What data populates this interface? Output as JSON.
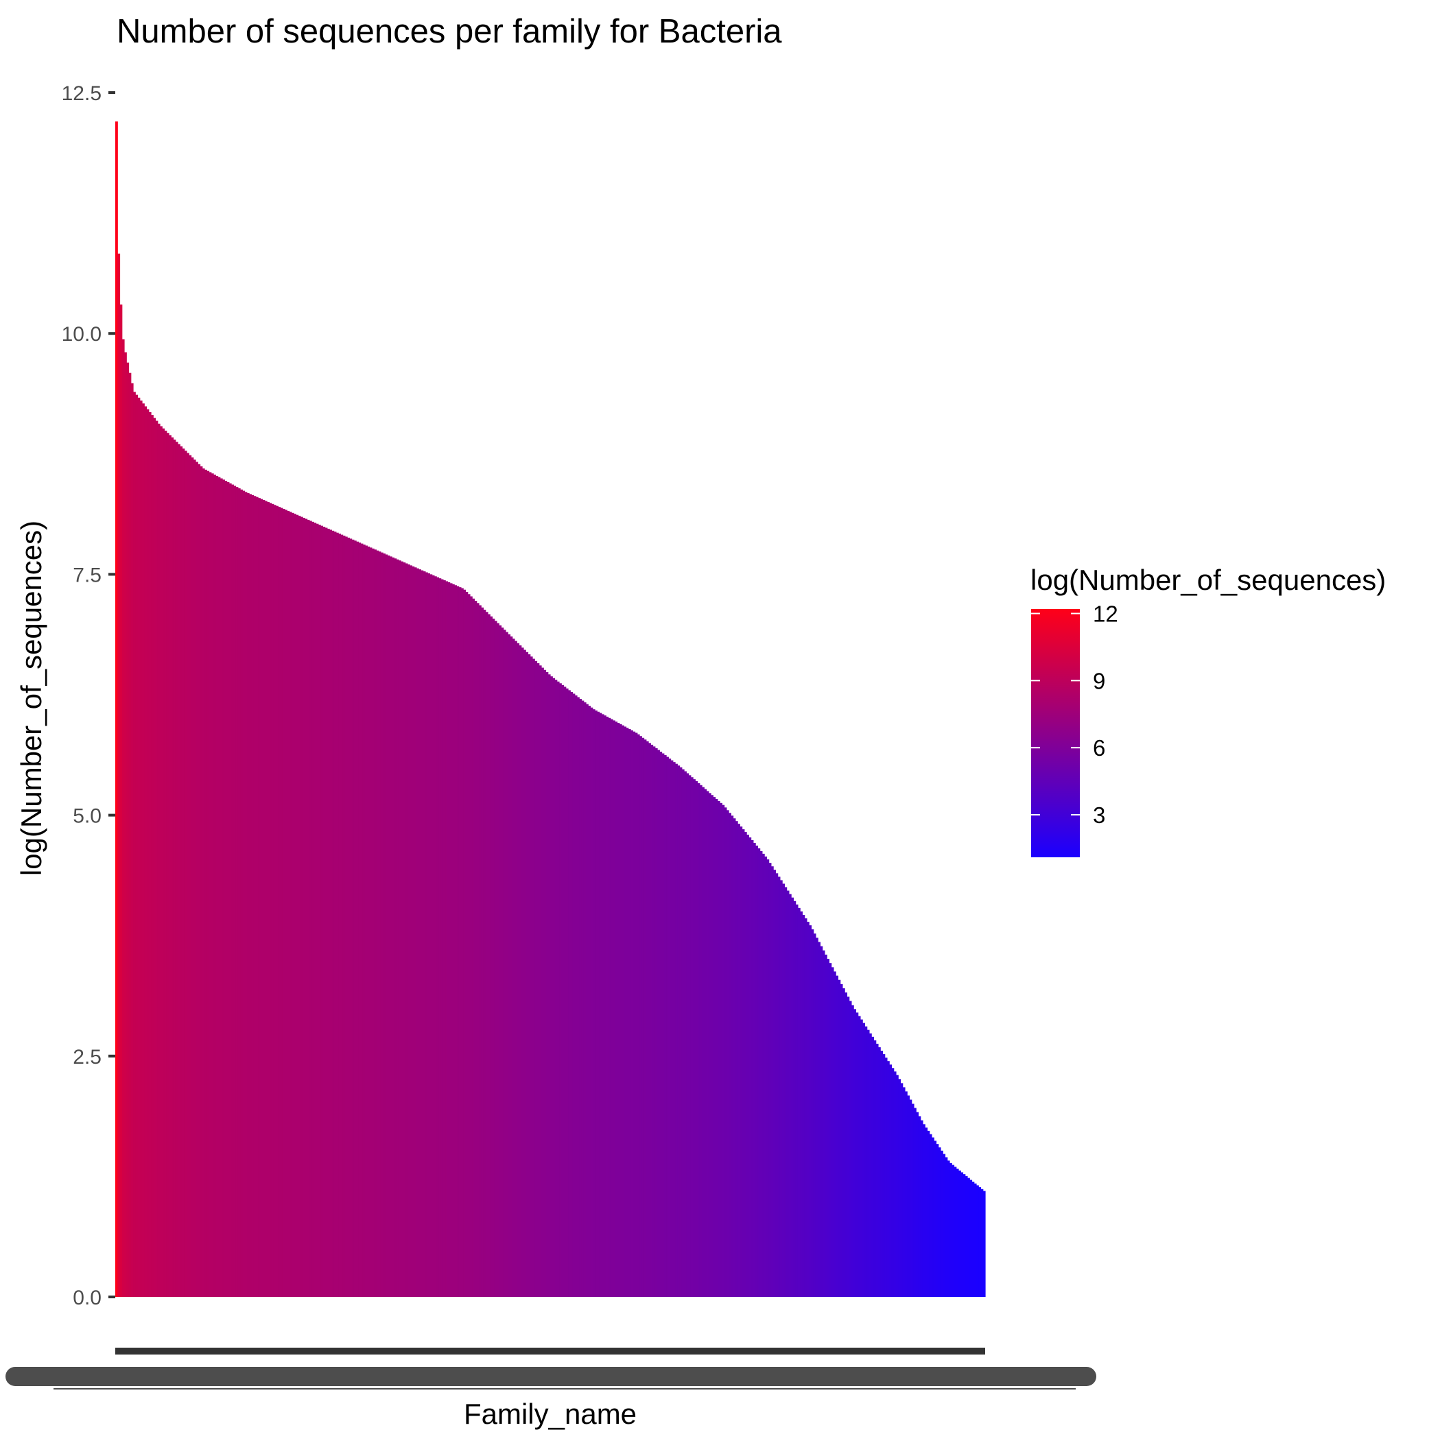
{
  "chart_data": {
    "type": "bar",
    "title": "Number of sequences per family for Bacteria",
    "xlabel": "Family_name",
    "ylabel": "log(Number_of_sequences)",
    "ylim": [
      0,
      12.5
    ],
    "y_ticks": [
      "0.0",
      "2.5",
      "5.0",
      "7.5",
      "10.0",
      "12.5"
    ],
    "sorted": "descending",
    "n_bars": 390,
    "x_tick_labels_overplotted": true,
    "grid": false,
    "legend": {
      "title": "log(Number_of_sequences)",
      "type": "colorbar",
      "placement": "right",
      "labels": [
        "12",
        "9",
        "6",
        "3"
      ],
      "range": [
        1.1,
        12.2
      ],
      "color_low": "#1a00ff",
      "color_high": "#ff0018"
    },
    "profile": [
      {
        "rank": 0.0,
        "value": 12.2
      },
      {
        "rank": 0.003,
        "value": 10.6
      },
      {
        "rank": 0.008,
        "value": 9.9
      },
      {
        "rank": 0.02,
        "value": 9.4
      },
      {
        "rank": 0.05,
        "value": 9.05
      },
      {
        "rank": 0.1,
        "value": 8.6
      },
      {
        "rank": 0.15,
        "value": 8.35
      },
      {
        "rank": 0.2,
        "value": 8.15
      },
      {
        "rank": 0.25,
        "value": 7.95
      },
      {
        "rank": 0.3,
        "value": 7.75
      },
      {
        "rank": 0.35,
        "value": 7.55
      },
      {
        "rank": 0.4,
        "value": 7.35
      },
      {
        "rank": 0.45,
        "value": 6.9
      },
      {
        "rank": 0.5,
        "value": 6.45
      },
      {
        "rank": 0.55,
        "value": 6.1
      },
      {
        "rank": 0.6,
        "value": 5.85
      },
      {
        "rank": 0.65,
        "value": 5.5
      },
      {
        "rank": 0.7,
        "value": 5.1
      },
      {
        "rank": 0.75,
        "value": 4.55
      },
      {
        "rank": 0.8,
        "value": 3.85
      },
      {
        "rank": 0.85,
        "value": 3.0
      },
      {
        "rank": 0.9,
        "value": 2.3
      },
      {
        "rank": 0.93,
        "value": 1.8
      },
      {
        "rank": 0.96,
        "value": 1.4
      },
      {
        "rank": 1.0,
        "value": 1.1
      }
    ]
  }
}
